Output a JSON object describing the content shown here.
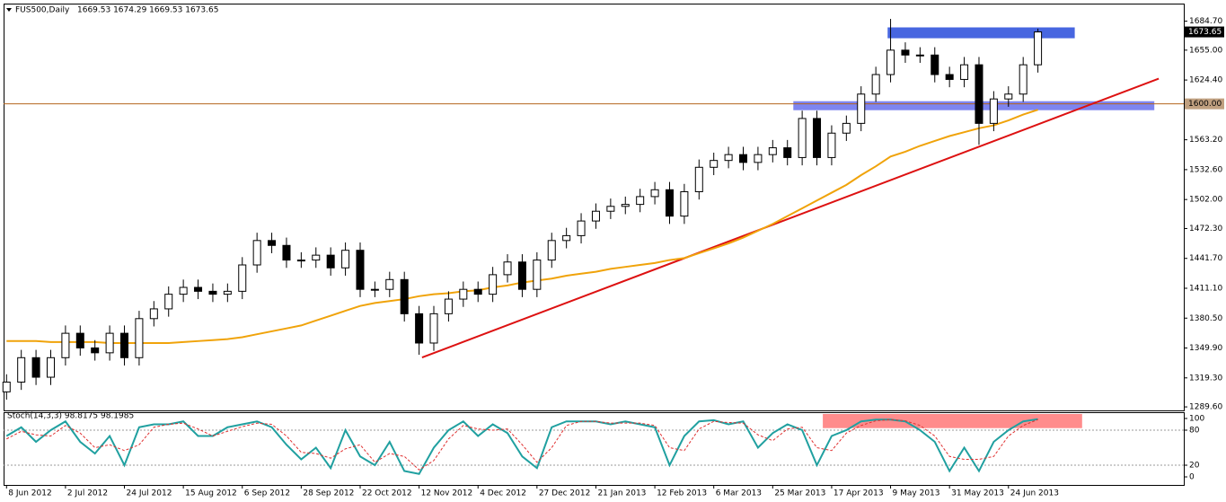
{
  "chart_data": [
    {
      "type": "candlestick",
      "title": "FUS500,Daily",
      "ohlc_label": "1669.53 1674.29 1669.53 1673.65",
      "xlim": [
        -0.2,
        79.9
      ],
      "ylim": [
        1286,
        1699
      ],
      "yticks": [
        {
          "value": 1684.7,
          "label": "1684.70"
        },
        {
          "value": 1655,
          "label": "1655.00"
        },
        {
          "value": 1624.4,
          "label": "1624.40"
        },
        {
          "value": 1563.2,
          "label": "1563.20"
        },
        {
          "value": 1532.6,
          "label": "1532.60"
        },
        {
          "value": 1502,
          "label": "1502.00"
        },
        {
          "value": 1472.3,
          "label": "1472.30"
        },
        {
          "value": 1441.7,
          "label": "1441.70"
        },
        {
          "value": 1411.1,
          "label": "1411.10"
        },
        {
          "value": 1380.5,
          "label": "1380.50"
        },
        {
          "value": 1349.9,
          "label": "1349.90"
        },
        {
          "value": 1319.3,
          "label": "1319.30"
        },
        {
          "value": 1289.6,
          "label": "1289.60"
        }
      ],
      "up_color": "#ffffff",
      "down_color": "#000000",
      "wick_color": "#000000",
      "open": [
        1305,
        1315,
        1340,
        1320,
        1340,
        1365,
        1350,
        1345,
        1365,
        1340,
        1380,
        1390,
        1405,
        1412,
        1408,
        1405,
        1408,
        1435,
        1460,
        1455,
        1440,
        1440,
        1445,
        1432,
        1450,
        1410,
        1410,
        1420,
        1385,
        1355,
        1385,
        1400,
        1410,
        1405,
        1425,
        1438,
        1410,
        1440,
        1460,
        1465,
        1480,
        1490,
        1495,
        1497,
        1505,
        1512,
        1485,
        1510,
        1535,
        1542,
        1548,
        1540,
        1548,
        1555,
        1545,
        1585,
        1545,
        1570,
        1580,
        1610,
        1630,
        1655,
        1650,
        1650,
        1630,
        1625,
        1640,
        1580,
        1605,
        1610,
        1640
      ],
      "high": [
        1323,
        1348,
        1348,
        1348,
        1373,
        1373,
        1358,
        1373,
        1373,
        1388,
        1398,
        1413,
        1420,
        1420,
        1416,
        1416,
        1443,
        1468,
        1468,
        1463,
        1448,
        1453,
        1453,
        1458,
        1458,
        1418,
        1428,
        1428,
        1393,
        1393,
        1408,
        1418,
        1418,
        1433,
        1446,
        1446,
        1448,
        1468,
        1473,
        1488,
        1498,
        1503,
        1505,
        1513,
        1520,
        1520,
        1518,
        1543,
        1550,
        1556,
        1556,
        1556,
        1563,
        1563,
        1593,
        1593,
        1578,
        1588,
        1618,
        1638,
        1687,
        1663,
        1658,
        1658,
        1638,
        1648,
        1648,
        1613,
        1618,
        1648,
        1677
      ],
      "low": [
        1297,
        1307,
        1312,
        1312,
        1332,
        1342,
        1337,
        1337,
        1332,
        1332,
        1372,
        1382,
        1397,
        1400,
        1397,
        1397,
        1400,
        1427,
        1447,
        1432,
        1432,
        1432,
        1424,
        1424,
        1402,
        1402,
        1402,
        1377,
        1343,
        1347,
        1377,
        1392,
        1397,
        1397,
        1417,
        1402,
        1402,
        1432,
        1452,
        1457,
        1472,
        1482,
        1487,
        1489,
        1497,
        1477,
        1477,
        1502,
        1527,
        1534,
        1532,
        1532,
        1540,
        1537,
        1537,
        1537,
        1537,
        1562,
        1572,
        1602,
        1622,
        1642,
        1642,
        1622,
        1617,
        1617,
        1558,
        1572,
        1597,
        1602,
        1632
      ],
      "close": [
        1315,
        1340,
        1320,
        1340,
        1365,
        1350,
        1345,
        1365,
        1340,
        1380,
        1390,
        1405,
        1412,
        1408,
        1405,
        1408,
        1435,
        1460,
        1455,
        1440,
        1440,
        1445,
        1432,
        1450,
        1410,
        1410,
        1420,
        1385,
        1355,
        1385,
        1400,
        1410,
        1405,
        1425,
        1438,
        1410,
        1440,
        1460,
        1465,
        1480,
        1490,
        1495,
        1497,
        1505,
        1512,
        1485,
        1510,
        1535,
        1542,
        1548,
        1540,
        1548,
        1555,
        1545,
        1585,
        1545,
        1570,
        1580,
        1610,
        1630,
        1655,
        1650,
        1650,
        1630,
        1625,
        1640,
        1580,
        1605,
        1610,
        1640,
        1673.65
      ],
      "ma": {
        "color": "#f0a30a",
        "values": [
          1357,
          1357,
          1357,
          1356,
          1356,
          1356,
          1356,
          1355,
          1355,
          1355,
          1355,
          1355,
          1356,
          1357,
          1358,
          1359,
          1361,
          1364,
          1367,
          1370,
          1373,
          1378,
          1383,
          1388,
          1393,
          1396,
          1398,
          1400,
          1403,
          1405,
          1406,
          1408,
          1409,
          1412,
          1414,
          1417,
          1419,
          1421,
          1424,
          1426,
          1428,
          1431,
          1433,
          1435,
          1437,
          1440,
          1442,
          1447,
          1452,
          1457,
          1463,
          1470,
          1477,
          1485,
          1493,
          1501,
          1509,
          1517,
          1527,
          1536,
          1546,
          1551,
          1557,
          1562,
          1567,
          1571,
          1575,
          1578,
          1583,
          1589,
          1594
        ]
      },
      "zones": [
        {
          "x": [
            59.8,
            72.5
          ],
          "y": [
            1667.2,
            1678.3
          ],
          "color": "#3355dd"
        },
        {
          "x": [
            53.4,
            77.9
          ],
          "y": [
            1593.5,
            1602.7
          ],
          "color": "#7078ee"
        }
      ],
      "lines": [
        {
          "x": [
            28.2,
            78.2
          ],
          "y": [
            1340.2,
            1625.8
          ],
          "color": "#dd1111"
        }
      ],
      "hlines": [
        {
          "value": 1600,
          "label": "1600.00",
          "color": "#b5651d"
        }
      ],
      "last_price": {
        "value": 1673.65,
        "label": "1673.65"
      }
    },
    {
      "type": "line",
      "title": "Stoch(14,3,3) 98.8175 98.1985",
      "xlim": [
        -0.2,
        79.9
      ],
      "ylim": [
        -13.8,
        109.2
      ],
      "yticks": [
        100,
        80,
        20,
        0
      ],
      "levels": [
        80,
        20
      ],
      "xticks": [
        {
          "value": 0,
          "label": "8 Jun 2012"
        },
        {
          "value": 4,
          "label": "2 Jul 2012"
        },
        {
          "value": 8,
          "label": "24 Jul 2012"
        },
        {
          "value": 12,
          "label": "15 Aug 2012"
        },
        {
          "value": 16,
          "label": "6 Sep 2012"
        },
        {
          "value": 20,
          "label": "28 Sep 2012"
        },
        {
          "value": 24,
          "label": "22 Oct 2012"
        },
        {
          "value": 28,
          "label": "12 Nov 2012"
        },
        {
          "value": 32,
          "label": "4 Dec 2012"
        },
        {
          "value": 36,
          "label": "27 Dec 2012"
        },
        {
          "value": 40,
          "label": "21 Jan 2013"
        },
        {
          "value": 44,
          "label": "12 Feb 2013"
        },
        {
          "value": 48,
          "label": "6 Mar 2013"
        },
        {
          "value": 52,
          "label": "25 Mar 2013"
        },
        {
          "value": 56,
          "label": "17 Apr 2013"
        },
        {
          "value": 60,
          "label": "9 May 2013"
        },
        {
          "value": 64,
          "label": "31 May 2013"
        },
        {
          "value": 68,
          "label": "24 Jun 2013"
        }
      ],
      "zones": [
        {
          "x": [
            55.4,
            73
          ],
          "y": [
            83.5,
            107.7
          ],
          "color": "#ff8080"
        }
      ],
      "series": [
        {
          "color": "#20a0a0",
          "values": [
            70,
            85,
            60,
            80,
            95,
            60,
            40,
            70,
            20,
            85,
            90,
            90,
            95,
            70,
            70,
            85,
            90,
            95,
            85,
            55,
            30,
            50,
            15,
            80,
            35,
            20,
            60,
            10,
            5,
            50,
            80,
            95,
            70,
            90,
            75,
            35,
            15,
            85,
            95,
            95,
            95,
            90,
            95,
            90,
            85,
            20,
            70,
            95,
            97,
            90,
            95,
            50,
            75,
            90,
            80,
            20,
            70,
            80,
            95,
            98,
            98,
            95,
            80,
            60,
            10,
            50,
            10,
            60,
            80,
            95,
            98.8175
          ]
        },
        {
          "color": "#e03030",
          "dash": true,
          "values": [
            65,
            78,
            72,
            70,
            88,
            75,
            50,
            55,
            45,
            55,
            85,
            90,
            92,
            82,
            70,
            78,
            86,
            92,
            90,
            70,
            42,
            40,
            32,
            48,
            55,
            25,
            40,
            35,
            12,
            28,
            65,
            88,
            82,
            80,
            82,
            55,
            25,
            50,
            88,
            95,
            95,
            92,
            92,
            92,
            88,
            50,
            45,
            82,
            95,
            93,
            92,
            72,
            62,
            82,
            85,
            50,
            45,
            75,
            88,
            96,
            98,
            96,
            88,
            70,
            35,
            30,
            30,
            35,
            70,
            88,
            98.1985
          ]
        }
      ]
    }
  ]
}
